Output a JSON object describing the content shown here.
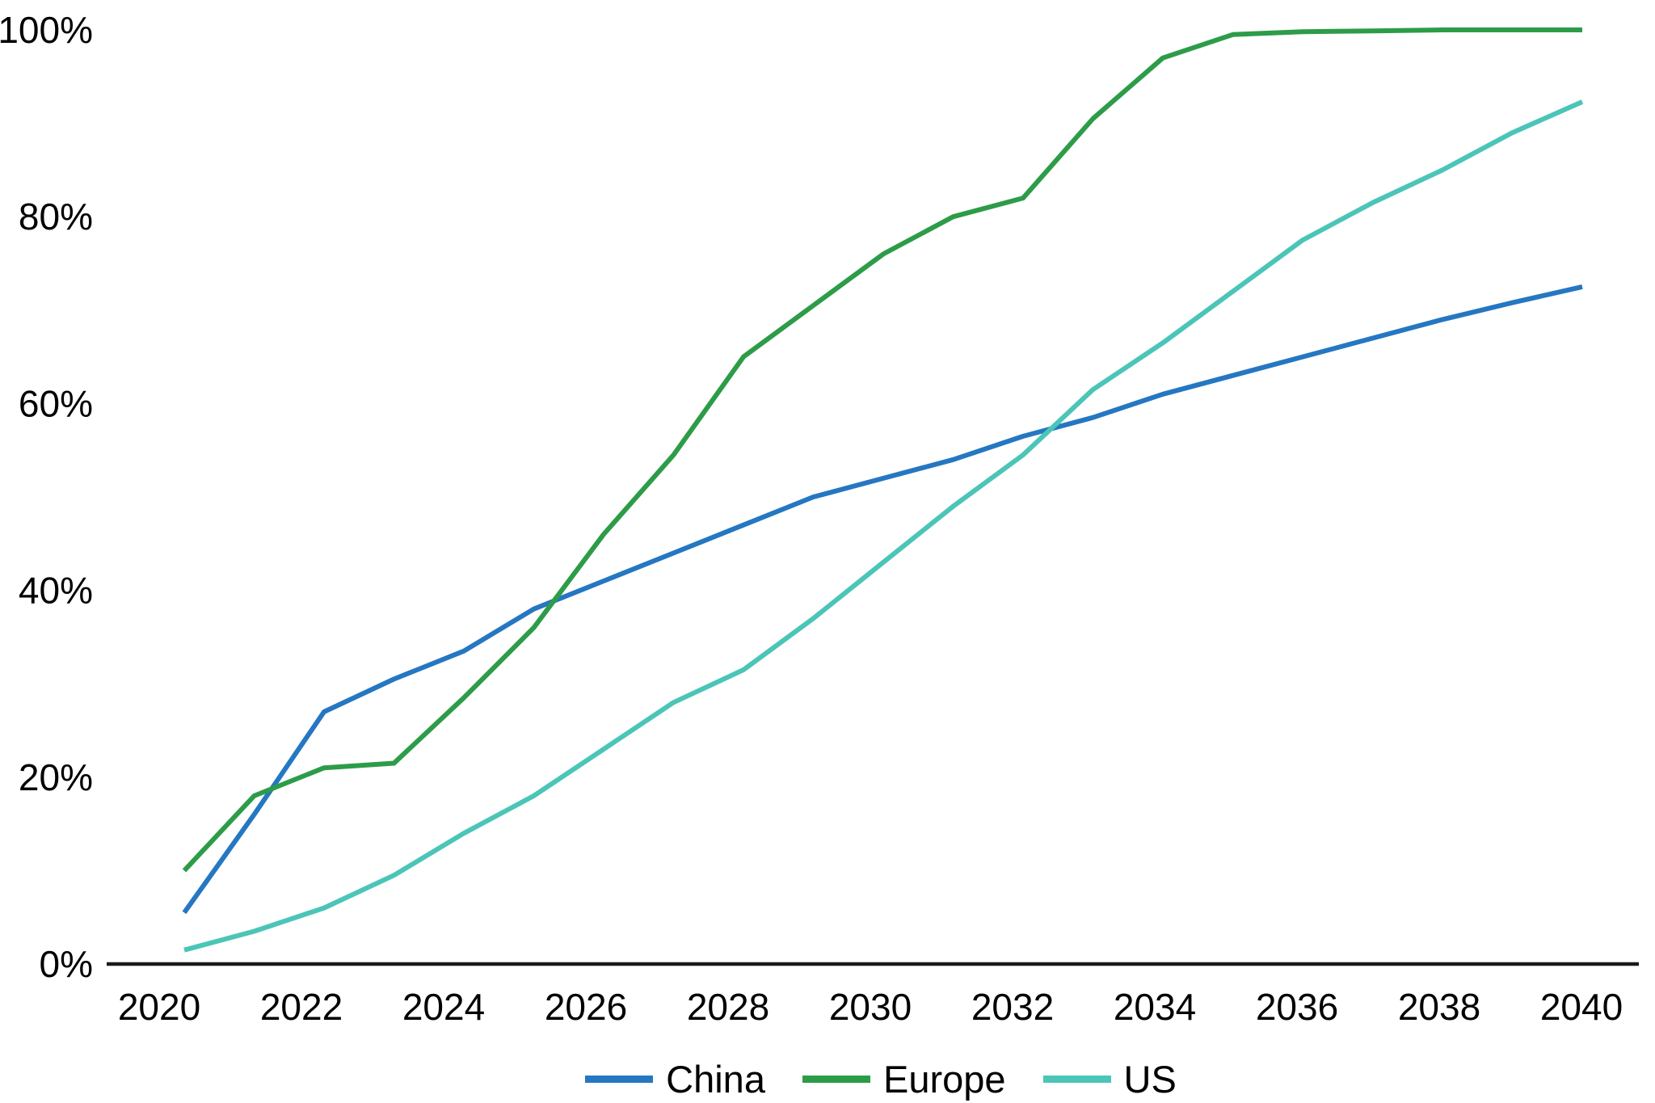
{
  "chart_data": {
    "type": "line",
    "title": "",
    "xlabel": "",
    "ylabel": "",
    "x": [
      2020,
      2021,
      2022,
      2023,
      2024,
      2025,
      2026,
      2027,
      2028,
      2029,
      2030,
      2031,
      2032,
      2033,
      2034,
      2035,
      2036,
      2037,
      2038,
      2039,
      2040
    ],
    "x_tick_labels": [
      "2020",
      "2022",
      "2024",
      "2026",
      "2028",
      "2030",
      "2032",
      "2034",
      "2036",
      "2038",
      "2040"
    ],
    "y_ticks": [
      0,
      20,
      40,
      60,
      80,
      100
    ],
    "y_tick_suffix": "%",
    "ylim": [
      0,
      100
    ],
    "grid": false,
    "legend_position": "bottom",
    "axis_color": "#1a1a1a",
    "text_color": "#000000",
    "series": [
      {
        "name": "China",
        "color": "#2577c2",
        "values": [
          5.5,
          16,
          27,
          30.5,
          33.5,
          38,
          41,
          44,
          47,
          50,
          52,
          54,
          56.5,
          58.5,
          61,
          63,
          65,
          67,
          69,
          70.8,
          72.5
        ]
      },
      {
        "name": "Europe",
        "color": "#2d9c48",
        "values": [
          10,
          18,
          21,
          21.5,
          28.5,
          36,
          46,
          54.5,
          65,
          70.5,
          76,
          80,
          82,
          90.5,
          97,
          99.5,
          99.8,
          99.9,
          100,
          100,
          100
        ]
      },
      {
        "name": "US",
        "color": "#4bc5b8",
        "values": [
          1.5,
          3.5,
          6,
          9.5,
          14,
          18,
          23,
          28,
          31.5,
          37,
          43,
          49,
          54.5,
          61.5,
          66.5,
          72,
          77.5,
          81.5,
          85,
          89,
          92.3
        ]
      }
    ]
  }
}
